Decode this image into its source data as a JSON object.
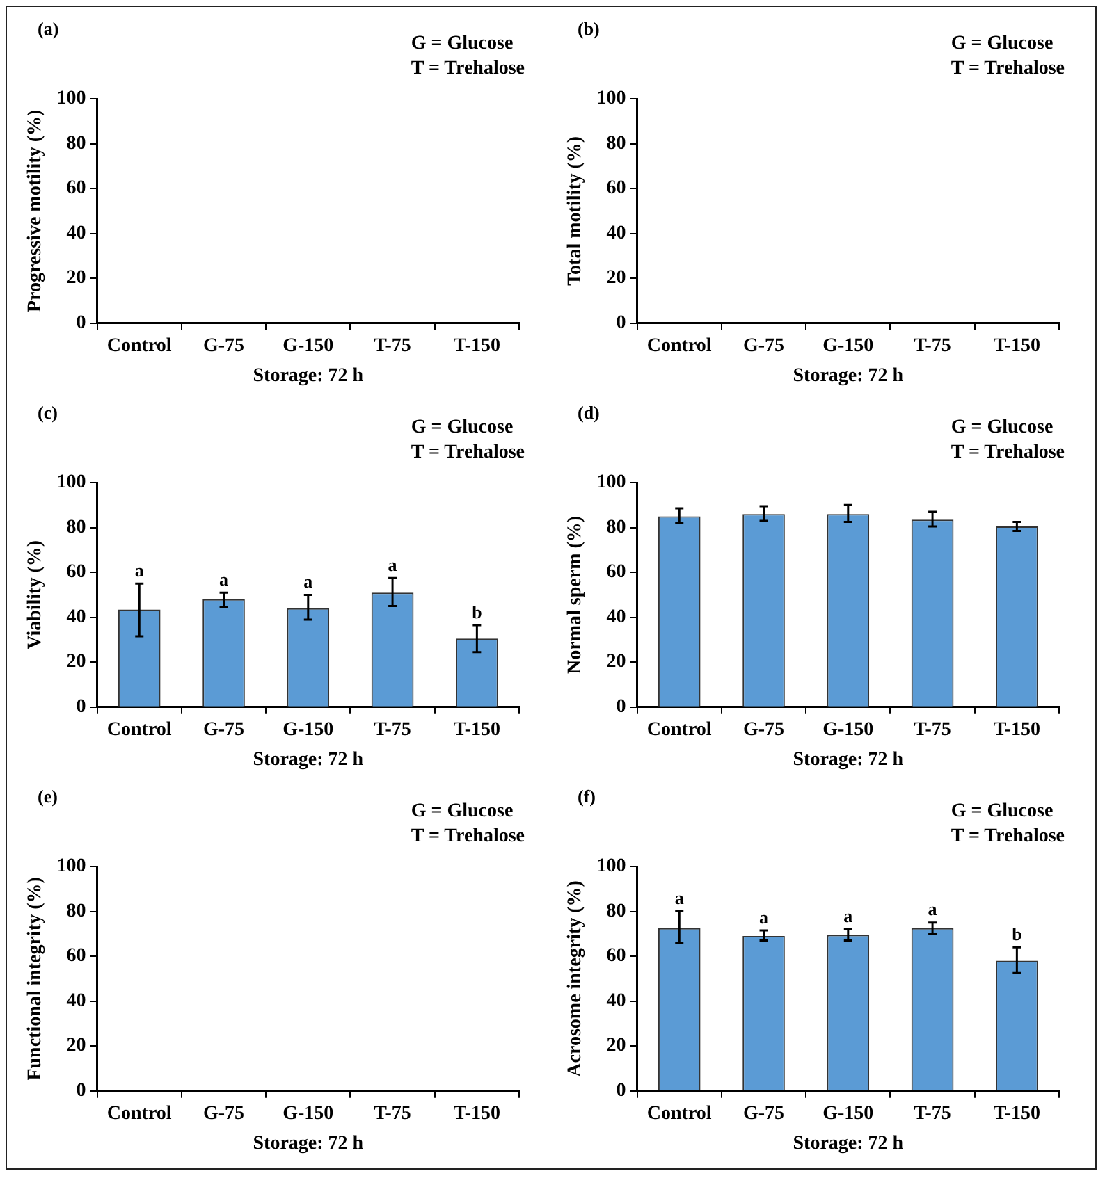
{
  "chart_data": [
    {
      "type": "bar",
      "title": "(a)",
      "annotations": [
        "G = Glucose",
        "T = Trehalose"
      ],
      "xlabel": "Storage: 72 h",
      "ylabel": "Progressive motility (%)",
      "categories": [
        "Control",
        "G-75",
        "G-150",
        "T-75",
        "T-150"
      ],
      "values": [
        null,
        null,
        null,
        null,
        null
      ],
      "color": "#5b9bd5",
      "ylim": [
        0,
        100
      ],
      "yticks": [
        0,
        20,
        40,
        60,
        80,
        100
      ],
      "grid": false,
      "legend": false
    },
    {
      "type": "bar",
      "title": "(b)",
      "annotations": [
        "G = Glucose",
        "T = Trehalose"
      ],
      "xlabel": "Storage: 72 h",
      "ylabel": "Total motility (%)",
      "categories": [
        "Control",
        "G-75",
        "G-150",
        "T-75",
        "T-150"
      ],
      "values": [
        null,
        null,
        null,
        null,
        null
      ],
      "color": "#5b9bd5",
      "ylim": [
        0,
        100
      ],
      "yticks": [
        0,
        20,
        40,
        60,
        80,
        100
      ],
      "grid": false,
      "legend": false
    },
    {
      "type": "bar",
      "title": "(c)",
      "annotations": [
        "G = Glucose",
        "T = Trehalose"
      ],
      "xlabel": "Storage: 72 h",
      "ylabel": "Viability (%)",
      "categories": [
        "Control",
        "G-75",
        "G-150",
        "T-75",
        "T-150"
      ],
      "values": [
        43.5,
        48,
        44,
        51,
        30.5
      ],
      "errors": [
        [
          31.5,
          55
        ],
        [
          44.5,
          51
        ],
        [
          39,
          50
        ],
        [
          45,
          57.5
        ],
        [
          24.5,
          36.5
        ]
      ],
      "value_labels": [
        "a",
        "a",
        "a",
        "a",
        "b"
      ],
      "color": "#5b9bd5",
      "ylim": [
        0,
        100
      ],
      "yticks": [
        0,
        20,
        40,
        60,
        80,
        100
      ],
      "grid": false,
      "legend": false
    },
    {
      "type": "bar",
      "title": "(d)",
      "annotations": [
        "G = Glucose",
        "T = Trehalose"
      ],
      "xlabel": "Storage: 72 h",
      "ylabel": "Normal sperm (%)",
      "categories": [
        "Control",
        "G-75",
        "G-150",
        "T-75",
        "T-150"
      ],
      "values": [
        85,
        86,
        86,
        83.5,
        80.5
      ],
      "errors": [
        [
          82,
          88.5
        ],
        [
          83,
          89.5
        ],
        [
          82.5,
          90
        ],
        [
          80.5,
          87
        ],
        [
          78.5,
          82.5
        ]
      ],
      "color": "#5b9bd5",
      "ylim": [
        0,
        100
      ],
      "yticks": [
        0,
        20,
        40,
        60,
        80,
        100
      ],
      "grid": false,
      "legend": false
    },
    {
      "type": "bar",
      "title": "(e)",
      "annotations": [
        "G = Glucose",
        "T = Trehalose"
      ],
      "xlabel": "Storage: 72 h",
      "ylabel": "Functional integrity (%)",
      "categories": [
        "Control",
        "G-75",
        "G-150",
        "T-75",
        "T-150"
      ],
      "values": [
        null,
        null,
        null,
        null,
        null
      ],
      "color": "#5b9bd5",
      "ylim": [
        0,
        100
      ],
      "yticks": [
        0,
        20,
        40,
        60,
        80,
        100
      ],
      "grid": false,
      "legend": false
    },
    {
      "type": "bar",
      "title": "(f)",
      "annotations": [
        "G = Glucose",
        "T = Trehalose"
      ],
      "xlabel": "Storage: 72 h",
      "ylabel": "Acrosome integrity (%)",
      "categories": [
        "Control",
        "G-75",
        "G-150",
        "T-75",
        "T-150"
      ],
      "values": [
        72.5,
        69,
        69.5,
        72.5,
        58
      ],
      "errors": [
        [
          66,
          80
        ],
        [
          67,
          71.5
        ],
        [
          67,
          72
        ],
        [
          70,
          75
        ],
        [
          52.5,
          64
        ]
      ],
      "value_labels": [
        "a",
        "a",
        "a",
        "a",
        "b"
      ],
      "color": "#5b9bd5",
      "ylim": [
        0,
        100
      ],
      "yticks": [
        0,
        20,
        40,
        60,
        80,
        100
      ],
      "grid": false,
      "legend": false
    }
  ]
}
